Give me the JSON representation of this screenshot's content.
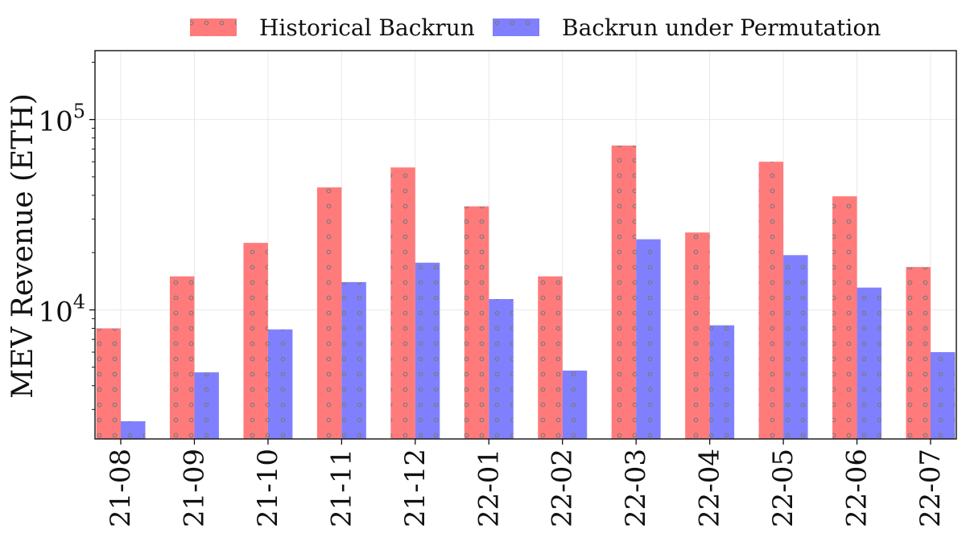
{
  "chart_data": {
    "type": "bar",
    "title": "",
    "xlabel": "",
    "ylabel": "MEV Revenue (ETH)",
    "yscale": "log",
    "ylim": [
      2100,
      230000
    ],
    "grid": true,
    "legend_position": "top-center",
    "categories": [
      "21-08",
      "21-09",
      "21-10",
      "21-11",
      "21-12",
      "22-01",
      "22-02",
      "22-03",
      "22-04",
      "22-05",
      "22-06",
      "22-07"
    ],
    "yticks": [
      {
        "value": 10000,
        "base": "10",
        "exp": "4"
      },
      {
        "value": 100000,
        "base": "10",
        "exp": "5"
      }
    ],
    "series": [
      {
        "name": "Historical Backrun",
        "color": "#ff7b7b",
        "values": [
          8000,
          15000,
          22500,
          44000,
          56000,
          35000,
          15000,
          73000,
          25500,
          60000,
          39500,
          16800
        ]
      },
      {
        "name": "Backrun under Permutation",
        "color": "#8080ff",
        "values": [
          2600,
          4700,
          7900,
          14000,
          17700,
          11400,
          4800,
          23500,
          8300,
          19400,
          13100,
          6000
        ]
      }
    ]
  }
}
